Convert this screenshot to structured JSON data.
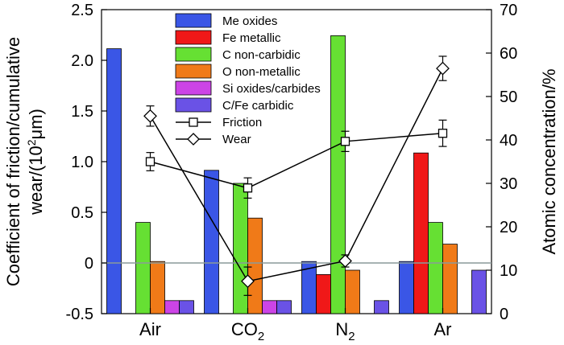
{
  "chart_data": {
    "type": "bar",
    "categories": [
      "Air",
      "CO2",
      "N2",
      "Ar"
    ],
    "category_labels": [
      {
        "main": "Air",
        "sub": ""
      },
      {
        "main": "CO",
        "sub": "2"
      },
      {
        "main": "N",
        "sub": "2"
      },
      {
        "main": "Ar",
        "sub": ""
      }
    ],
    "ylabel_left_line1": "Coefficient of friction/cumulative",
    "ylabel_left_line2_pre": "wear/(10",
    "ylabel_left_line2_sup": "2",
    "ylabel_left_line2_post": "μm)",
    "ylabel_right": "Atomic concentration/%",
    "ylim_left": [
      -0.5,
      2.5
    ],
    "ylim_right": [
      0,
      70
    ],
    "yticks_left": [
      -0.5,
      0,
      0.5,
      1.0,
      1.5,
      2.0,
      2.5
    ],
    "yticks_left_labels": [
      "-0.5",
      "0",
      "0.5",
      "1.0",
      "1.5",
      "2.0",
      "2.5"
    ],
    "yticks_right": [
      0,
      10,
      20,
      30,
      40,
      50,
      60,
      70
    ],
    "yticks_right_labels": [
      "0",
      "10",
      "20",
      "30",
      "40",
      "50",
      "60",
      "70"
    ],
    "bar_series": [
      {
        "name": "Me oxides",
        "color": "#3a56e6",
        "values": [
          61,
          33,
          12,
          12
        ]
      },
      {
        "name": "Fe metallic",
        "color": "#f01818",
        "values": [
          null,
          null,
          9,
          37
        ]
      },
      {
        "name": "C non-carbidic",
        "color": "#66e033",
        "values": [
          21,
          30,
          64,
          21
        ]
      },
      {
        "name": "O non-metallic",
        "color": "#f07a18",
        "values": [
          12,
          22,
          10,
          16
        ]
      },
      {
        "name": "Si oxides/carbides",
        "color": "#cc44e6",
        "values": [
          3,
          3,
          null,
          null
        ]
      },
      {
        "name": "C/Fe carbidic",
        "color": "#6a52e6",
        "values": [
          3,
          3,
          3,
          10
        ]
      }
    ],
    "line_series": [
      {
        "name": "Friction",
        "marker": "square",
        "values": [
          1.0,
          0.74,
          1.2,
          1.28
        ],
        "errors": [
          0.09,
          0.1,
          0.1,
          0.13
        ]
      },
      {
        "name": "Wear",
        "marker": "diamond",
        "values": [
          1.45,
          -0.18,
          0.02,
          1.92
        ],
        "errors": [
          0.1,
          0.14,
          0.06,
          0.12
        ]
      }
    ],
    "zero_line": 0,
    "grid": false,
    "legend_position": "top-center"
  }
}
